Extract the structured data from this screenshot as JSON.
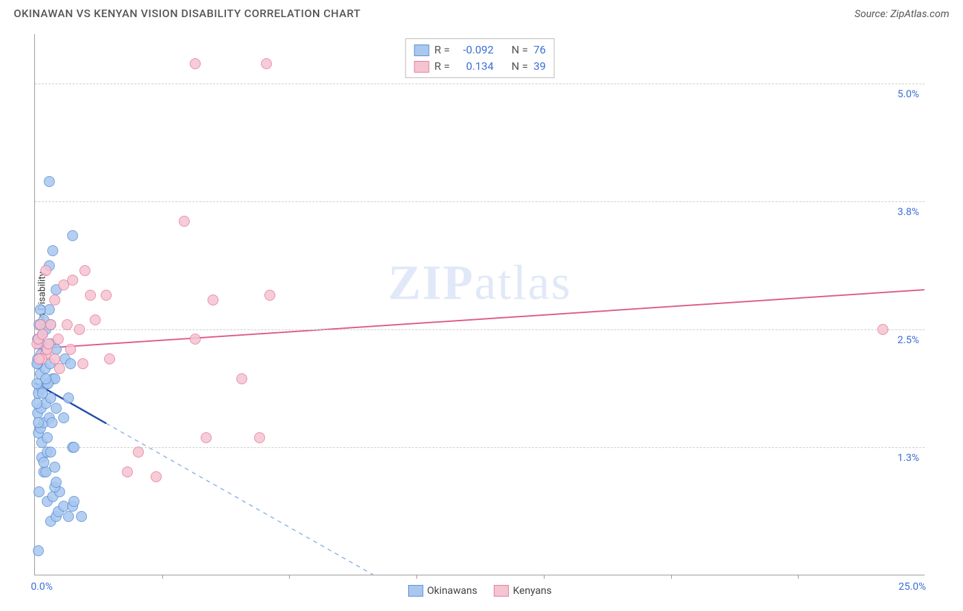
{
  "header": {
    "title": "OKINAWAN VS KENYAN VISION DISABILITY CORRELATION CHART",
    "source": "Source: ZipAtlas.com"
  },
  "watermark": {
    "part1": "ZIP",
    "part2": "atlas"
  },
  "chart": {
    "type": "scatter",
    "y_axis_title": "Vision Disability",
    "xlim": [
      0,
      25.0
    ],
    "ylim": [
      0,
      5.5
    ],
    "x_ticks_pct": [
      0,
      3.57,
      7.14,
      10.71,
      14.29,
      17.86,
      21.43,
      25.0
    ],
    "x_tick_labels": [
      "0.0%",
      "",
      "",
      "",
      "",
      "",
      "",
      "25.0%"
    ],
    "y_gridlines_pct": [
      1.3,
      2.5,
      3.8,
      5.0
    ],
    "y_tick_labels": [
      "1.3%",
      "2.5%",
      "3.8%",
      "5.0%"
    ],
    "background_color": "#ffffff",
    "grid_color": "#cccccc",
    "axis_color": "#999999",
    "label_color": "#3b6fd6",
    "marker_radius": 8,
    "marker_stroke_width": 1.5,
    "marker_fill_opacity": 0.25,
    "series": [
      {
        "name": "Okinawans",
        "color_fill": "#a9c7ef",
        "color_stroke": "#5b8fd6",
        "r": "-0.092",
        "n": "76",
        "trend": {
          "x1": 0.0,
          "y1": 1.95,
          "x2": 9.5,
          "y2": 0.0,
          "solid_until_x": 2.0,
          "solid_color": "#1f4aa8",
          "dash_color": "#8fb2e6",
          "width": 2
        },
        "points": [
          [
            0.1,
            0.25
          ],
          [
            0.45,
            0.55
          ],
          [
            0.6,
            0.6
          ],
          [
            0.65,
            0.65
          ],
          [
            0.35,
            0.75
          ],
          [
            0.5,
            0.8
          ],
          [
            0.7,
            0.85
          ],
          [
            0.55,
            0.9
          ],
          [
            0.8,
            0.7
          ],
          [
            0.25,
            1.05
          ],
          [
            0.3,
            1.05
          ],
          [
            0.2,
            1.2
          ],
          [
            0.35,
            1.25
          ],
          [
            0.45,
            1.25
          ],
          [
            0.1,
            1.45
          ],
          [
            0.15,
            1.5
          ],
          [
            0.25,
            1.55
          ],
          [
            0.4,
            1.6
          ],
          [
            0.08,
            1.65
          ],
          [
            0.18,
            1.7
          ],
          [
            0.3,
            1.75
          ],
          [
            0.45,
            1.8
          ],
          [
            0.1,
            1.85
          ],
          [
            0.2,
            1.9
          ],
          [
            0.35,
            1.95
          ],
          [
            0.5,
            2.0
          ],
          [
            0.15,
            2.05
          ],
          [
            0.28,
            2.1
          ],
          [
            0.42,
            2.15
          ],
          [
            0.55,
            2.0
          ],
          [
            0.08,
            2.2
          ],
          [
            0.18,
            2.25
          ],
          [
            0.32,
            2.3
          ],
          [
            0.45,
            2.35
          ],
          [
            0.1,
            2.4
          ],
          [
            0.22,
            2.45
          ],
          [
            0.36,
            1.95
          ],
          [
            0.12,
            2.55
          ],
          [
            0.25,
            2.6
          ],
          [
            0.4,
            2.7
          ],
          [
            0.6,
            2.9
          ],
          [
            0.85,
            2.2
          ],
          [
            1.0,
            2.15
          ],
          [
            1.05,
            1.3
          ],
          [
            1.1,
            1.3
          ],
          [
            1.05,
            0.7
          ],
          [
            1.1,
            0.75
          ],
          [
            0.95,
            0.6
          ],
          [
            1.3,
            0.6
          ],
          [
            0.5,
            3.3
          ],
          [
            0.4,
            3.15
          ],
          [
            1.05,
            3.45
          ],
          [
            0.4,
            4.0
          ],
          [
            0.3,
            2.5
          ],
          [
            0.15,
            2.35
          ],
          [
            0.08,
            2.15
          ],
          [
            0.05,
            1.95
          ],
          [
            0.05,
            1.75
          ],
          [
            0.1,
            1.55
          ],
          [
            0.2,
            1.35
          ],
          [
            0.55,
            1.1
          ],
          [
            0.6,
            0.95
          ],
          [
            0.35,
            1.4
          ],
          [
            0.48,
            1.55
          ],
          [
            0.6,
            1.7
          ],
          [
            0.22,
            1.85
          ],
          [
            0.3,
            2.0
          ],
          [
            0.8,
            1.6
          ],
          [
            0.95,
            1.8
          ],
          [
            0.15,
            2.7
          ],
          [
            0.08,
            2.4
          ],
          [
            0.05,
            2.15
          ],
          [
            0.45,
            2.55
          ],
          [
            0.6,
            2.3
          ],
          [
            0.25,
            1.15
          ],
          [
            0.12,
            0.85
          ]
        ]
      },
      {
        "name": "Kenyans",
        "color_fill": "#f5c4d1",
        "color_stroke": "#e57ba0",
        "r": "0.134",
        "n": "39",
        "trend": {
          "x1": 0.0,
          "y1": 2.3,
          "x2": 25.0,
          "y2": 2.9,
          "color": "#e05a8c",
          "width": 2
        },
        "points": [
          [
            0.05,
            2.35
          ],
          [
            0.1,
            2.4
          ],
          [
            0.3,
            2.25
          ],
          [
            0.35,
            2.3
          ],
          [
            0.2,
            2.2
          ],
          [
            0.45,
            2.55
          ],
          [
            0.55,
            2.2
          ],
          [
            0.65,
            2.4
          ],
          [
            0.7,
            2.1
          ],
          [
            0.9,
            2.55
          ],
          [
            1.25,
            2.5
          ],
          [
            1.7,
            2.6
          ],
          [
            2.0,
            2.85
          ],
          [
            1.35,
            2.15
          ],
          [
            2.1,
            2.2
          ],
          [
            2.6,
            1.05
          ],
          [
            2.9,
            1.25
          ],
          [
            3.4,
            1.0
          ],
          [
            4.5,
            2.4
          ],
          [
            4.2,
            3.6
          ],
          [
            4.8,
            1.4
          ],
          [
            5.8,
            2.0
          ],
          [
            6.3,
            1.4
          ],
          [
            5.0,
            2.8
          ],
          [
            6.6,
            2.85
          ],
          [
            4.5,
            5.2
          ],
          [
            6.5,
            5.2
          ],
          [
            0.55,
            2.8
          ],
          [
            0.8,
            2.95
          ],
          [
            1.05,
            3.0
          ],
          [
            1.4,
            3.1
          ],
          [
            0.3,
            3.1
          ],
          [
            1.0,
            2.3
          ],
          [
            1.55,
            2.85
          ],
          [
            23.8,
            2.5
          ],
          [
            0.12,
            2.2
          ],
          [
            0.22,
            2.45
          ],
          [
            0.38,
            2.35
          ],
          [
            0.15,
            2.55
          ]
        ]
      }
    ],
    "bottom_legend": [
      {
        "label": "Okinawans",
        "fill": "#a9c7ef",
        "stroke": "#5b8fd6"
      },
      {
        "label": "Kenyans",
        "fill": "#f5c4d1",
        "stroke": "#e57ba0"
      }
    ]
  },
  "legend_top": {
    "r_label": "R =",
    "n_label": "N ="
  }
}
